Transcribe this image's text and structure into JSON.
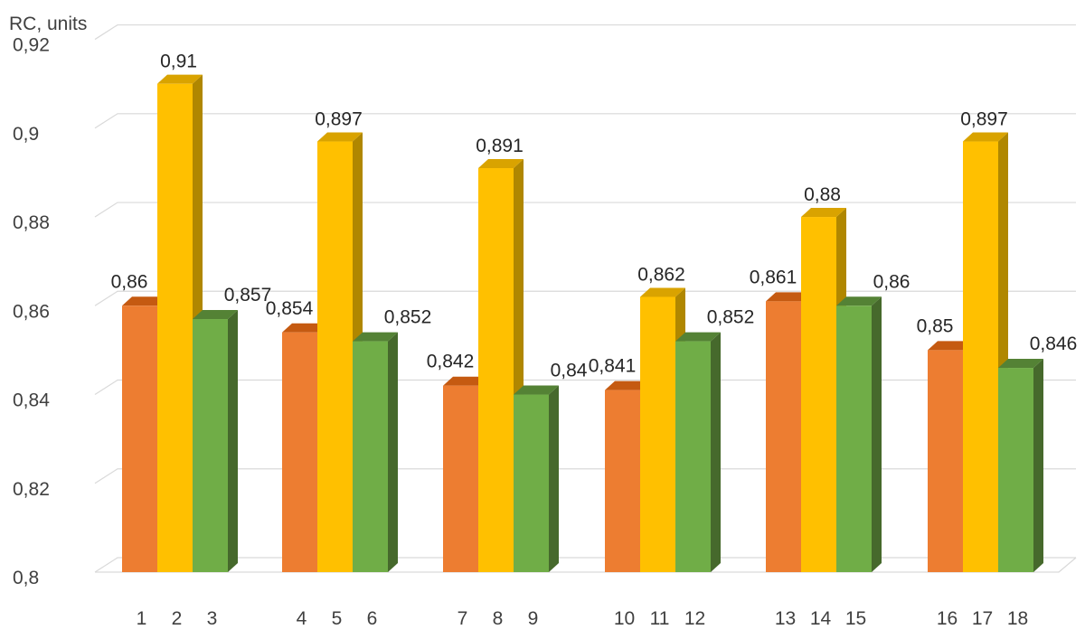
{
  "chart_data": {
    "type": "bar",
    "style": "3d-clustered-column",
    "ylabel": "RC, units",
    "ylim": [
      0.8,
      0.92
    ],
    "yticks": [
      {
        "value": 0.8,
        "label": "0,8"
      },
      {
        "value": 0.82,
        "label": "0,82"
      },
      {
        "value": 0.84,
        "label": "0,84"
      },
      {
        "value": 0.86,
        "label": "0,86"
      },
      {
        "value": 0.88,
        "label": "0,88"
      },
      {
        "value": 0.9,
        "label": "0,9"
      },
      {
        "value": 0.92,
        "label": "0,92"
      }
    ],
    "grid": true,
    "legend": "none",
    "series_colors": {
      "orange": {
        "front": "#ED7D31",
        "top": "#C55A11",
        "side": "#A9480D"
      },
      "gold": {
        "front": "#FFC000",
        "top": "#D9A300",
        "side": "#B08700"
      },
      "green": {
        "front": "#70AD47",
        "top": "#548235",
        "side": "#46692C"
      }
    },
    "groups": [
      {
        "bars": [
          {
            "category": "1",
            "value": 0.86,
            "label": "0,86",
            "color": "orange"
          },
          {
            "category": "2",
            "value": 0.91,
            "label": "0,91",
            "color": "gold"
          },
          {
            "category": "3",
            "value": 0.857,
            "label": "0,857",
            "color": "green"
          }
        ]
      },
      {
        "bars": [
          {
            "category": "4",
            "value": 0.854,
            "label": "0,854",
            "color": "orange"
          },
          {
            "category": "5",
            "value": 0.897,
            "label": "0,897",
            "color": "gold"
          },
          {
            "category": "6",
            "value": 0.852,
            "label": "0,852",
            "color": "green"
          }
        ]
      },
      {
        "bars": [
          {
            "category": "7",
            "value": 0.842,
            "label": "0,842",
            "color": "orange"
          },
          {
            "category": "8",
            "value": 0.891,
            "label": "0,891",
            "color": "gold"
          },
          {
            "category": "9",
            "value": 0.84,
            "label": "0,84",
            "color": "green"
          }
        ]
      },
      {
        "bars": [
          {
            "category": "10",
            "value": 0.841,
            "label": "0,841",
            "color": "orange"
          },
          {
            "category": "11",
            "value": 0.862,
            "label": "0,862",
            "color": "gold"
          },
          {
            "category": "12",
            "value": 0.852,
            "label": "0,852",
            "color": "green"
          }
        ]
      },
      {
        "bars": [
          {
            "category": "13",
            "value": 0.861,
            "label": "0,861",
            "color": "orange"
          },
          {
            "category": "14",
            "value": 0.88,
            "label": "0,88",
            "color": "gold"
          },
          {
            "category": "15",
            "value": 0.86,
            "label": "0,86",
            "color": "green"
          }
        ]
      },
      {
        "bars": [
          {
            "category": "16",
            "value": 0.85,
            "label": "0,85",
            "color": "orange"
          },
          {
            "category": "17",
            "value": 0.897,
            "label": "0,897",
            "color": "gold"
          },
          {
            "category": "18",
            "value": 0.846,
            "label": "0,846",
            "color": "green"
          }
        ]
      }
    ]
  }
}
